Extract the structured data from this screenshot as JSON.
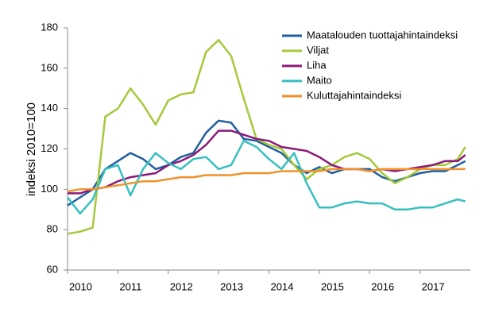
{
  "chart_data": {
    "type": "line",
    "ylabel": "indeksi 2010=100",
    "x": [
      2010,
      2010.25,
      2010.5,
      2010.75,
      2011,
      2011.25,
      2011.5,
      2011.75,
      2012,
      2012.25,
      2012.5,
      2012.75,
      2013,
      2013.25,
      2013.5,
      2013.75,
      2014,
      2014.25,
      2014.5,
      2014.75,
      2015,
      2015.25,
      2015.5,
      2015.75,
      2016,
      2016.25,
      2016.5,
      2016.75,
      2017,
      2017.25,
      2017.5,
      2017.75,
      2017.9
    ],
    "xlim": [
      2010,
      2018
    ],
    "xticks": [
      2010,
      2011,
      2012,
      2013,
      2014,
      2015,
      2016,
      2017
    ],
    "ylim": [
      60,
      180
    ],
    "yticks": [
      60,
      80,
      100,
      120,
      140,
      160,
      180
    ],
    "grid": false,
    "series": [
      {
        "name": "Maatalouden tuottajahintaindeksi",
        "color": "#1f5f9e",
        "values": [
          92,
          96,
          100,
          110,
          114,
          118,
          115,
          110,
          112,
          116,
          118,
          128,
          134,
          133,
          125,
          124,
          121,
          118,
          112,
          108,
          111,
          108,
          110,
          110,
          110,
          106,
          104,
          106,
          108,
          109,
          109,
          112,
          114
        ]
      },
      {
        "name": "Viljat",
        "color": "#a5c93b",
        "values": [
          78,
          79,
          81,
          136,
          140,
          150,
          142,
          132,
          144,
          147,
          148,
          168,
          174,
          166,
          145,
          125,
          122,
          120,
          112,
          105,
          110,
          112,
          116,
          118,
          115,
          108,
          103,
          106,
          110,
          112,
          112,
          115,
          121
        ]
      },
      {
        "name": "Liha",
        "color": "#8b1a7a",
        "values": [
          98,
          98,
          100,
          101,
          104,
          106,
          107,
          108,
          112,
          114,
          117,
          122,
          129,
          129,
          127,
          125,
          124,
          121,
          120,
          119,
          116,
          112,
          110,
          110,
          109,
          110,
          109,
          110,
          111,
          112,
          114,
          114,
          117
        ]
      },
      {
        "name": "Maito",
        "color": "#37bfbf",
        "values": [
          96,
          88,
          95,
          110,
          112,
          97,
          110,
          118,
          113,
          110,
          115,
          116,
          110,
          112,
          124,
          121,
          115,
          110,
          118,
          103,
          91,
          91,
          93,
          94,
          93,
          93,
          90,
          90,
          91,
          91,
          93,
          95,
          94
        ]
      },
      {
        "name": "Kuluttajahintaindeksi",
        "color": "#f0922b",
        "values": [
          99,
          100,
          100,
          101,
          102,
          103,
          104,
          104,
          105,
          106,
          106,
          107,
          107,
          107,
          108,
          108,
          108,
          109,
          109,
          109,
          109,
          110,
          110,
          110,
          109,
          110,
          110,
          110,
          110,
          110,
          110,
          110,
          110
        ]
      }
    ]
  }
}
